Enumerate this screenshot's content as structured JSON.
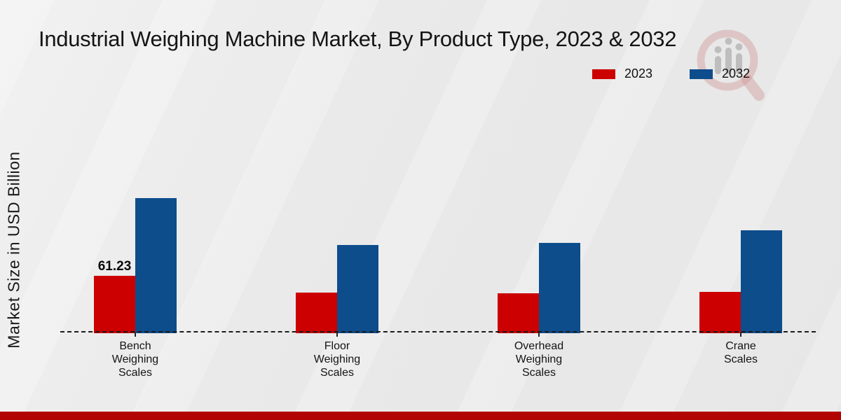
{
  "chart_data": {
    "type": "bar",
    "title": "Industrial Weighing Machine Market, By Product Type, 2023 & 2032",
    "xlabel": "",
    "ylabel": "Market Size in USD Billion",
    "categories": [
      "Bench Weighing Scales",
      "Floor Weighing Scales",
      "Overhead Weighing Scales",
      "Crane Scales"
    ],
    "category_label_lines": [
      [
        "Bench",
        "Weighing",
        "Scales"
      ],
      [
        "Floor",
        "Weighing",
        "Scales"
      ],
      [
        "Overhead",
        "Weighing",
        "Scales"
      ],
      [
        "Crane",
        "Scales"
      ]
    ],
    "series": [
      {
        "name": "2023",
        "color": "#cc0000",
        "values": [
          61.23,
          43.4,
          42.2,
          43.6
        ]
      },
      {
        "name": "2032",
        "color": "#0d4d8c",
        "values": [
          145.2,
          94.6,
          96.8,
          110.4
        ]
      }
    ],
    "data_labels": [
      {
        "series_index": 0,
        "category_index": 0,
        "text": "61.23"
      }
    ],
    "legend_position": "top-right",
    "baseline_style": "dashed",
    "grid": false,
    "value_axis_tick_labels_visible": false
  },
  "watermark": {
    "icon": "magnifier-bar-chart-logo",
    "lens_color": "#d09090",
    "bars_color": "#8a8a8a"
  },
  "footer": {
    "color": "#b30404"
  }
}
